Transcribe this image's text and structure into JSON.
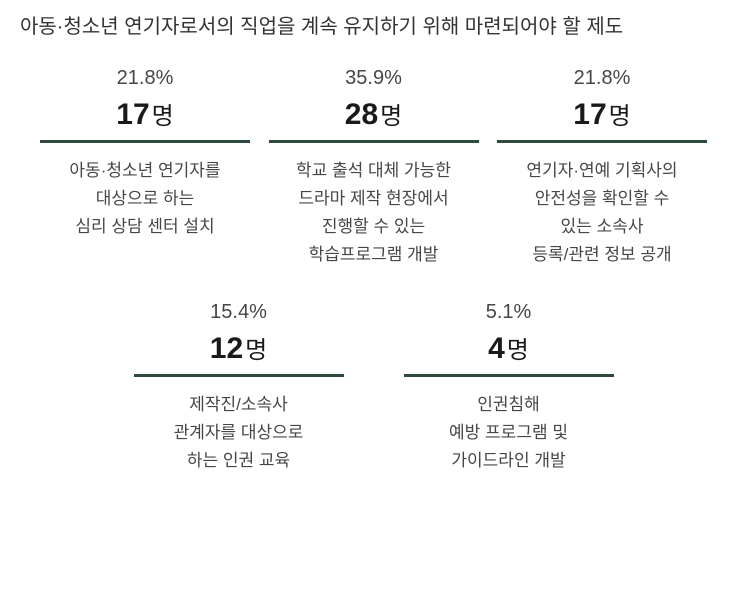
{
  "title": "아동·청소년 연기자로서의 직업을 계속 유지하기 위해 마련되어야 할 제도",
  "unit": "명",
  "accent_color": "#2d4a3a",
  "items": [
    {
      "percent": "21.8%",
      "count": "17",
      "desc_lines": [
        "아동·청소년 연기자를",
        "대상으로 하는",
        "심리 상담 센터 설치"
      ]
    },
    {
      "percent": "35.9%",
      "count": "28",
      "desc_lines": [
        "학교 출석 대체 가능한",
        "드라마 제작 현장에서",
        "진행할 수 있는",
        "학습프로그램 개발"
      ]
    },
    {
      "percent": "21.8%",
      "count": "17",
      "desc_lines": [
        "연기자·연예 기획사의",
        "안전성을 확인할 수",
        "있는 소속사",
        "등록/관련 정보 공개"
      ]
    },
    {
      "percent": "15.4%",
      "count": "12",
      "desc_lines": [
        "제작진/소속사",
        "관계자를 대상으로",
        "하는 인권 교육"
      ]
    },
    {
      "percent": "5.1%",
      "count": "4",
      "desc_lines": [
        "인권침해",
        "예방 프로그램 및",
        "가이드라인 개발"
      ]
    }
  ]
}
